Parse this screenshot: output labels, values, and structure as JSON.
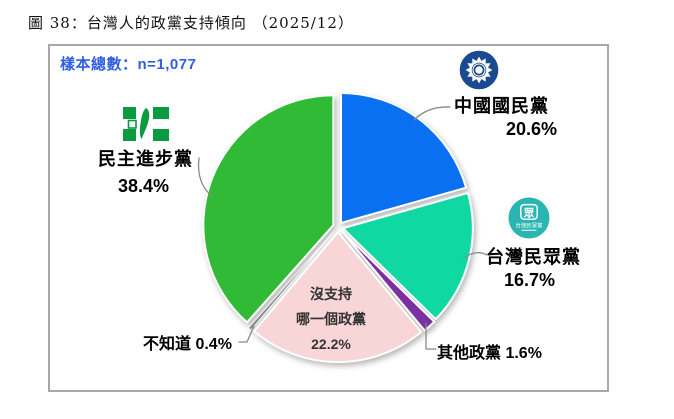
{
  "title": "圖 38：台灣人的政黨支持傾向 （2025/12）",
  "sample_box": {
    "label": "樣本總數：n=1,077"
  },
  "chart_data": {
    "type": "pie",
    "title": "台灣人的政黨支持傾向 (2025/12)",
    "sample_note": "樣本總數：n=1,077",
    "start_angle": "12-oclock",
    "direction": "clockwise",
    "slices": [
      {
        "id": "kmt",
        "label": "中國國民黨",
        "value": 20.6,
        "display": "20.6%",
        "color": "#0a70f2"
      },
      {
        "id": "tpp",
        "label": "台灣民眾黨",
        "value": 16.7,
        "display": "16.7%",
        "color": "#10d8a2"
      },
      {
        "id": "other",
        "label": "其他政黨",
        "value": 1.6,
        "display": "1.6%",
        "color": "#7b2fa3"
      },
      {
        "id": "none",
        "label": "沒支持哪一個政黨",
        "value": 22.2,
        "display": "22.2%",
        "color": "#f8d6d7"
      },
      {
        "id": "dk",
        "label": "不知道",
        "value": 0.4,
        "display": "0.4%",
        "color": "#8a8a8a"
      },
      {
        "id": "dpp",
        "label": "民主進步黨",
        "value": 38.4,
        "display": "38.4%",
        "color": "#30ba35"
      }
    ]
  },
  "callouts": {
    "kmt": {
      "name": "中國國民黨",
      "pct": "20.6%"
    },
    "tpp": {
      "name": "台灣民眾黨",
      "pct": "16.7%"
    },
    "dpp": {
      "name": "民主進步黨",
      "pct": "38.4%"
    },
    "dk": {
      "text": "不知道 0.4%"
    },
    "other": {
      "text": "其他政黨 1.6%"
    },
    "none": {
      "line1": "沒支持",
      "line2": "哪一個政黨",
      "line3": "22.2%"
    }
  },
  "logos": {
    "kmt_icon": "kmt-white-sun-emblem",
    "kmt_color": "#1a4a8f",
    "tpp_icon": "tpp-circle-emblem",
    "tpp_color": "#29b5b1",
    "tpp_glyph": "眾",
    "tpp_text": "台灣民眾黨",
    "dpp_icon": "dpp-flag-emblem",
    "dpp_color": "#0a9a40"
  }
}
